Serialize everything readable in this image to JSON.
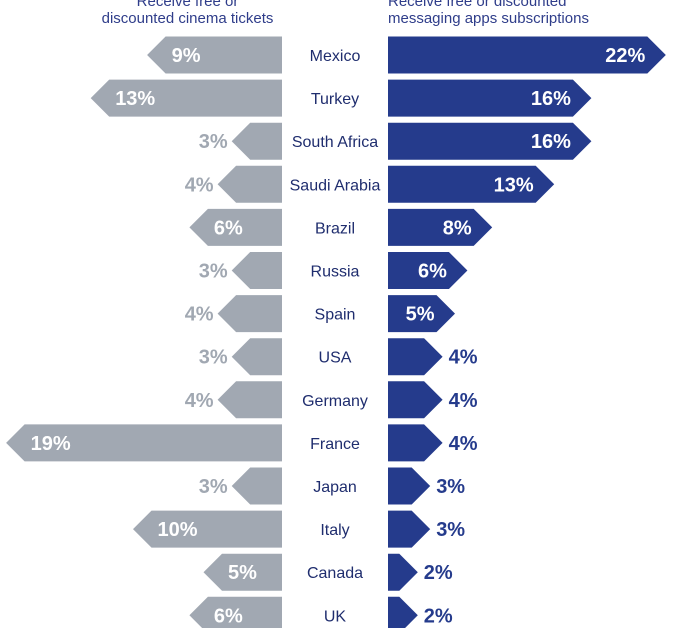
{
  "header": {
    "left_line1": "Receive free or",
    "left_line2": "discounted cinema tickets",
    "right_line1": "Receive free or discounted",
    "right_line2": "messaging apps subscriptions"
  },
  "colors": {
    "left_bar": "#a1a8b2",
    "right_bar": "#253b8c",
    "left_label_outside": "#a1a8b2",
    "right_label_outside": "#253b8c",
    "label_inside": "#ffffff"
  },
  "chart_data": {
    "type": "bar",
    "orientation": "horizontal-diverging",
    "categories": [
      "Mexico",
      "Turkey",
      "South Africa",
      "Saudi Arabia",
      "Brazil",
      "Russia",
      "Spain",
      "USA",
      "Germany",
      "France",
      "Japan",
      "Italy",
      "Canada",
      "UK"
    ],
    "series": [
      {
        "name": "Receive free or discounted cinema tickets",
        "values": [
          9,
          13,
          3,
          4,
          6,
          3,
          4,
          3,
          4,
          19,
          3,
          10,
          5,
          6
        ],
        "labels": [
          "9%",
          "13%",
          "3%",
          "4%",
          "6%",
          "3%",
          "4%",
          "3%",
          "4%",
          "19%",
          "3%",
          "10%",
          "5%",
          "6%"
        ]
      },
      {
        "name": "Receive free or discounted messaging apps subscriptions",
        "values": [
          22,
          16,
          16,
          13,
          8,
          6,
          5,
          4,
          4,
          4,
          3,
          3,
          2,
          2
        ],
        "labels": [
          "22%",
          "16%",
          "16%",
          "13%",
          "8%",
          "6%",
          "5%",
          "4%",
          "4%",
          "4%",
          "3%",
          "3%",
          "2%",
          "2%"
        ]
      }
    ],
    "unit": "%"
  }
}
